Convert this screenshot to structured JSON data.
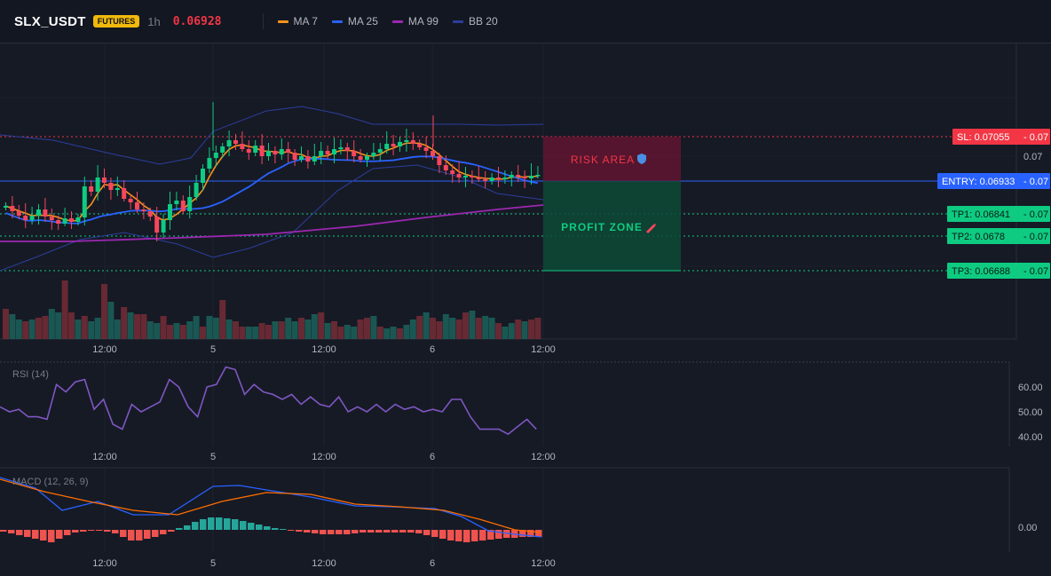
{
  "header": {
    "symbol": "SLX_USDT",
    "badge": "FUTURES",
    "interval": "1h",
    "price": "0.06928",
    "legend": [
      {
        "label": "MA 7",
        "color": "#f7931a"
      },
      {
        "label": "MA 25",
        "color": "#2962ff"
      },
      {
        "label": "MA 99",
        "color": "#9c27b0"
      },
      {
        "label": "BB 20",
        "color": "#2c3e9c"
      }
    ]
  },
  "levels": {
    "sl": {
      "label": "SL: 0.07055",
      "value": "0.07"
    },
    "entry": {
      "label": "ENTRY: 0.06933",
      "value": "0.07"
    },
    "tp1": {
      "label": "TP1: 0.06841",
      "value": "0.07"
    },
    "tp2": {
      "label": "TP2: 0.0678",
      "value": "0.07"
    },
    "tp3": {
      "label": "TP3: 0.06688",
      "value": "0.07"
    },
    "axis_tick": "0.07"
  },
  "zones": {
    "risk": "RISK AREA",
    "profit": "PROFIT ZONE"
  },
  "time_labels": [
    "12:00",
    "5",
    "12:00",
    "6",
    "12:00"
  ],
  "rsi": {
    "label": "RSI (14)",
    "ticks": [
      "60.00",
      "50.00",
      "40.00"
    ]
  },
  "macd": {
    "label": "MACD (12, 26, 9)",
    "tick": "0.00"
  },
  "colors": {
    "up": "#089981",
    "down": "#f23645",
    "up_bright": "#0ecb81",
    "down_bright": "#f6465d",
    "ma7": "#f7931a",
    "ma25": "#2962ff",
    "ma99": "#9c27b0",
    "bb": "#2c3e9c",
    "rsi_line": "#7e57c2",
    "macd_line": "#2962ff",
    "signal_line": "#ff6d00"
  }
}
